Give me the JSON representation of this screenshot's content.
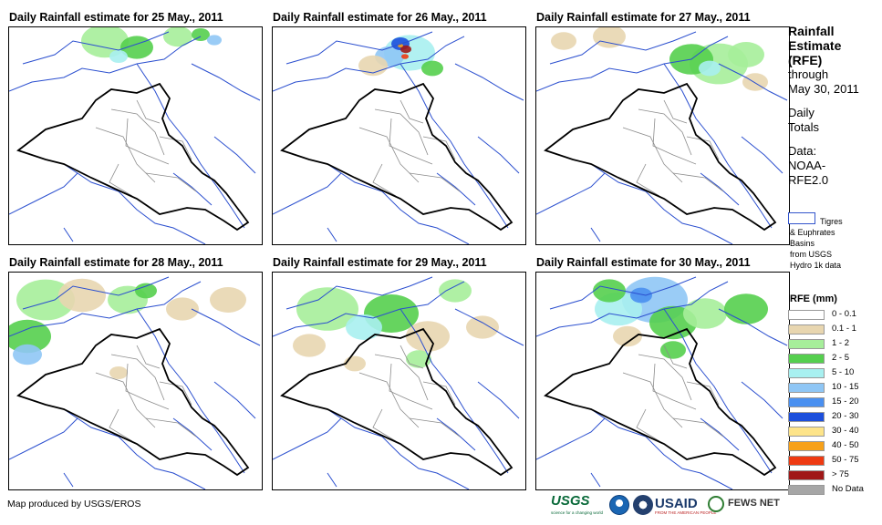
{
  "panels": [
    {
      "title": "Daily Rainfall estimate for 25 May., 2011"
    },
    {
      "title": "Daily Rainfall estimate for 26 May., 2011"
    },
    {
      "title": "Daily Rainfall estimate for 27 May., 2011"
    },
    {
      "title": "Daily Rainfall estimate for 28 May., 2011"
    },
    {
      "title": "Daily Rainfall estimate for 29 May., 2011"
    },
    {
      "title": "Daily Rainfall estimate for 30 May., 2011"
    }
  ],
  "sidebar": {
    "title_line1": "Rainfall",
    "title_line2": "Estimate",
    "title_line3": "(RFE)",
    "through": "through",
    "end_date": "May 30, 2011",
    "daily": "Daily",
    "totals": "Totals",
    "data_label": "Data:",
    "data_source1": "NOAA-",
    "data_source2": "RFE2.0",
    "basin_line1": "Tigres",
    "basin_line2": "& Euphrates",
    "basin_line3": "Basins",
    "basin_line4": "from USGS",
    "basin_line5": "Hydro 1k data"
  },
  "legend": {
    "title": "RFE (mm)",
    "items": [
      {
        "label": "0 - 0.1",
        "color": "#ffffff"
      },
      {
        "label": "0.1 - 1",
        "color": "#e8d6b0"
      },
      {
        "label": "1 - 2",
        "color": "#a6ee9a"
      },
      {
        "label": "2 - 5",
        "color": "#55cf4e"
      },
      {
        "label": "5 - 10",
        "color": "#a8f0f0"
      },
      {
        "label": "10 - 15",
        "color": "#8fc6f5"
      },
      {
        "label": "15 - 20",
        "color": "#4a90f0"
      },
      {
        "label": "20 - 30",
        "color": "#1c4fdc"
      },
      {
        "label": "30 - 40",
        "color": "#fde48a"
      },
      {
        "label": "40 - 50",
        "color": "#f7a11a"
      },
      {
        "label": "50 - 75",
        "color": "#ee3a12"
      },
      {
        "label": "> 75",
        "color": "#a01818"
      },
      {
        "label": "No Data",
        "color": "#a6a6a6"
      }
    ]
  },
  "footer": {
    "credit": "Map produced by USGS/EROS",
    "usgs": "USGS",
    "usgs_tagline": "science for a changing world",
    "usaid": "USAID",
    "usaid_tagline": "FROM THE AMERICAN PEOPLE",
    "fews": "FEWS NET"
  },
  "colors": {
    "country_border": "#000000",
    "province_border": "#8c8c8c",
    "river": "#2b4fcf",
    "basin_outline": "#3355cc"
  }
}
